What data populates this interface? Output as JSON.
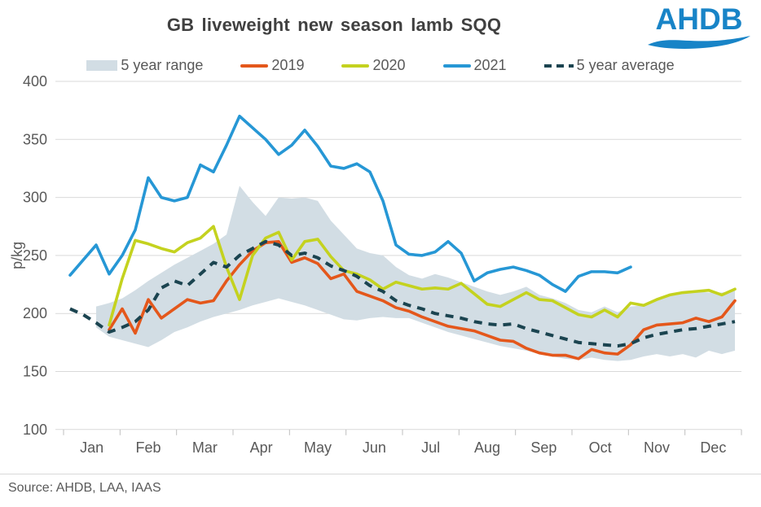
{
  "header": {
    "title": "GB liveweight new season lamb SQQ",
    "logo_text": "AHDB",
    "logo_color": "#1884C7"
  },
  "footer": {
    "source": "Source: AHDB, LAA, IAAS"
  },
  "chart_data": {
    "type": "line",
    "title": "GB liveweight new season lamb SQQ",
    "xlabel": "",
    "ylabel": "p/kg",
    "ylim": [
      100,
      400
    ],
    "y_ticks": [
      100,
      150,
      200,
      250,
      300,
      350,
      400
    ],
    "months": [
      "Jan",
      "Feb",
      "Mar",
      "Apr",
      "May",
      "Jun",
      "Jul",
      "Aug",
      "Sep",
      "Oct",
      "Nov",
      "Dec"
    ],
    "x_unit": "week-of-year",
    "weeks": 52,
    "grid": true,
    "legend_position": "top",
    "axis_text_color": "#595959",
    "series": [
      {
        "name": "5 year range",
        "style": "band",
        "color": "#D2DDE4",
        "top": [
          null,
          null,
          206,
          209,
          213,
          220,
          228,
          235,
          242,
          248,
          254,
          260,
          268,
          310,
          296,
          284,
          300,
          299,
          300,
          297,
          280,
          268,
          256,
          252,
          250,
          240,
          233,
          230,
          234,
          231,
          227,
          223,
          219,
          216,
          219,
          223,
          216,
          213,
          209,
          203,
          201,
          206,
          201,
          206,
          207,
          211,
          215,
          217,
          219,
          218,
          218,
          220
        ],
        "bottom": [
          null,
          null,
          188,
          180,
          177,
          174,
          171,
          177,
          184,
          188,
          193,
          197,
          200,
          203,
          207,
          210,
          213,
          210,
          207,
          203,
          199,
          195,
          194,
          196,
          197,
          196,
          196,
          192,
          188,
          184,
          181,
          178,
          175,
          172,
          170,
          168,
          165,
          163,
          161,
          160,
          162,
          160,
          159,
          160,
          163,
          165,
          163,
          165,
          162,
          168,
          165,
          168
        ]
      },
      {
        "name": "2019",
        "style": "solid",
        "color": "#E4571B",
        "values": [
          null,
          null,
          null,
          186,
          204,
          183,
          212,
          196,
          204,
          212,
          209,
          211,
          228,
          242,
          254,
          261,
          262,
          244,
          248,
          243,
          230,
          234,
          219,
          215,
          211,
          205,
          202,
          197,
          193,
          189,
          187,
          185,
          181,
          177,
          176,
          170,
          166,
          164,
          164,
          161,
          169,
          166,
          165,
          173,
          186,
          190,
          191,
          192,
          196,
          193,
          197,
          211
        ]
      },
      {
        "name": "2020",
        "style": "solid",
        "color": "#C4D21F",
        "values": [
          null,
          null,
          null,
          190,
          230,
          263,
          260,
          256,
          253,
          261,
          265,
          275,
          240,
          212,
          250,
          265,
          270,
          246,
          262,
          264,
          249,
          237,
          234,
          229,
          221,
          227,
          224,
          221,
          222,
          221,
          226,
          217,
          208,
          206,
          212,
          218,
          212,
          211,
          205,
          199,
          197,
          203,
          197,
          209,
          207,
          212,
          216,
          218,
          219,
          220,
          216,
          221
        ]
      },
      {
        "name": "2021",
        "style": "solid",
        "color": "#2697D5",
        "values": [
          233,
          246,
          259,
          234,
          250,
          272,
          317,
          300,
          297,
          300,
          328,
          322,
          345,
          370,
          360,
          350,
          337,
          345,
          358,
          344,
          327,
          325,
          329,
          322,
          297,
          259,
          251,
          250,
          253,
          262,
          252,
          228,
          235,
          238,
          240,
          237,
          233,
          225,
          219,
          232,
          236,
          236,
          235,
          240,
          null,
          null,
          null,
          null,
          null,
          null,
          null,
          null
        ]
      },
      {
        "name": "5 year average",
        "style": "dashed",
        "color": "#1B4450",
        "values": [
          204,
          199,
          192,
          184,
          188,
          193,
          203,
          222,
          228,
          224,
          234,
          244,
          240,
          250,
          256,
          262,
          259,
          250,
          252,
          248,
          241,
          237,
          232,
          224,
          219,
          211,
          207,
          204,
          200,
          198,
          196,
          193,
          191,
          190,
          191,
          187,
          184,
          181,
          178,
          175,
          174,
          173,
          172,
          174,
          179,
          182,
          184,
          186,
          187,
          189,
          191,
          193
        ]
      }
    ]
  }
}
